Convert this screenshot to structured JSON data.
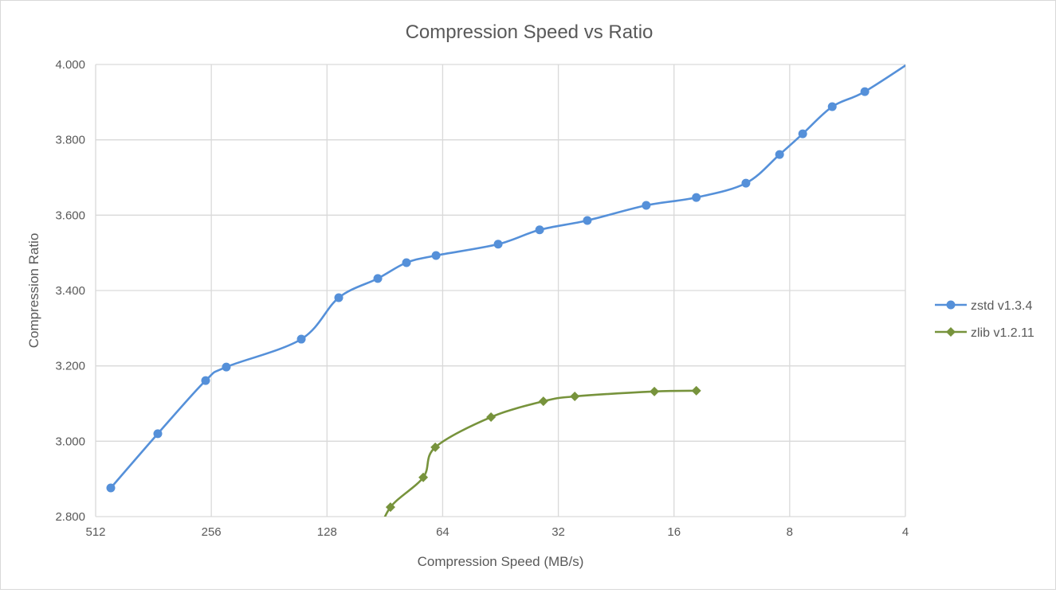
{
  "chart_data": {
    "type": "line",
    "title": "Compression Speed vs Ratio",
    "xlabel": "Compression Speed (MB/s)",
    "ylabel": "Compression Ratio",
    "x_scale": "log2",
    "x_reversed": true,
    "xlim": [
      512,
      4
    ],
    "ylim": [
      2.8,
      4.0
    ],
    "x_ticks": [
      "512",
      "256",
      "128",
      "64",
      "32",
      "16",
      "8",
      "4"
    ],
    "x_tick_values": [
      512,
      256,
      128,
      64,
      32,
      16,
      8,
      4
    ],
    "y_ticks": [
      "2.800",
      "3.000",
      "3.200",
      "3.400",
      "3.600",
      "3.800",
      "4.000"
    ],
    "y_tick_values": [
      2.8,
      3.0,
      3.2,
      3.4,
      3.6,
      3.8,
      4.0
    ],
    "grid": true,
    "legend_position": "right",
    "smooth": true,
    "series": [
      {
        "name": "zstd v1.3.4",
        "color": "#5590d9",
        "marker": "circle",
        "x": [
          467.6,
          352.8,
          264.9,
          234,
          149.3,
          119.3,
          94.4,
          79.5,
          66.6,
          45.9,
          35.8,
          26.9,
          18.9,
          14.0,
          10.4,
          8.5,
          7.4,
          6.2,
          5.1,
          3.7
        ],
        "y": [
          2.876,
          3.02,
          3.161,
          3.197,
          3.271,
          3.381,
          3.432,
          3.474,
          3.493,
          3.523,
          3.561,
          3.586,
          3.626,
          3.647,
          3.685,
          3.761,
          3.816,
          3.888,
          3.928,
          4.02
        ]
      },
      {
        "name": "zlib v1.2.11",
        "color": "#77933c",
        "marker": "diamond",
        "x": [
          95,
          87.5,
          71.9,
          66.9,
          47.9,
          35.0,
          29.0,
          18.0,
          14.0
        ],
        "y": [
          2.74,
          2.825,
          2.904,
          2.984,
          3.064,
          3.106,
          3.119,
          3.132,
          3.134
        ]
      }
    ]
  }
}
